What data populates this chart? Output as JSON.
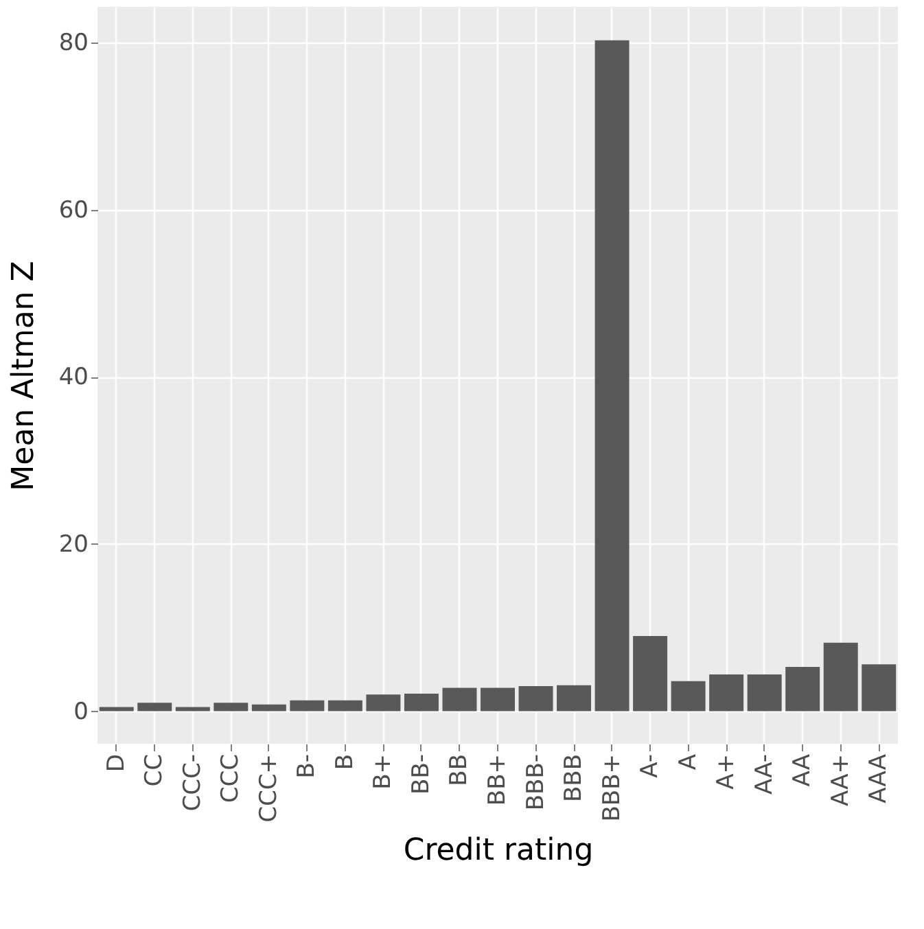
{
  "chart_data": {
    "type": "bar",
    "xlabel": "Credit rating",
    "ylabel": "Mean Altman Z",
    "categories": [
      "D",
      "CC",
      "CCC-",
      "CCC",
      "CCC+",
      "B-",
      "B",
      "B+",
      "BB-",
      "BB",
      "BB+",
      "BBB-",
      "BBB",
      "BBB+",
      "A-",
      "A",
      "A+",
      "AA-",
      "AA",
      "AA+",
      "AAA"
    ],
    "values": [
      0.5,
      1.0,
      0.5,
      1.0,
      0.8,
      1.3,
      1.3,
      2.0,
      2.1,
      2.8,
      2.8,
      3.0,
      3.1,
      80.3,
      9.0,
      3.6,
      4.4,
      4.4,
      5.3,
      8.2,
      5.6
    ],
    "color": "#595959",
    "ylim": [
      -3.9,
      84.3
    ],
    "yticks": [
      0,
      20,
      40,
      60,
      80
    ],
    "grid": true
  }
}
